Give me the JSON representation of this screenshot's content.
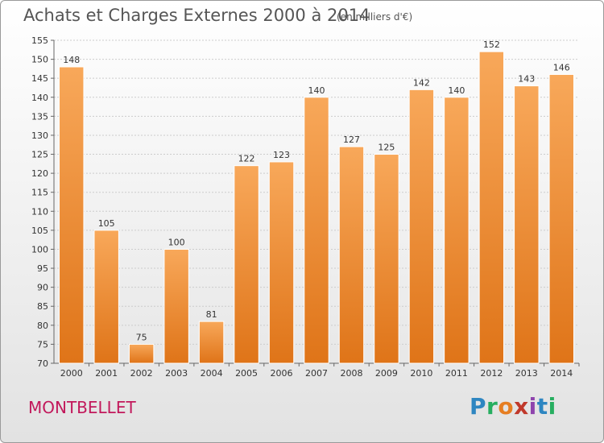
{
  "title": "Achats et Charges Externes 2000 à 2014",
  "subtitle": "(en milliers d'€)",
  "commune": "MONTBELLET",
  "logo": {
    "letters": [
      {
        "ch": "P",
        "color": "#2e86c1"
      },
      {
        "ch": "r",
        "color": "#27ae60"
      },
      {
        "ch": "o",
        "color": "#e67e22"
      },
      {
        "ch": "x",
        "color": "#c0392b"
      },
      {
        "ch": "i",
        "color": "#8e44ad"
      },
      {
        "ch": "t",
        "color": "#2e86c1"
      },
      {
        "ch": "i",
        "color": "#27ae60"
      }
    ]
  },
  "colors": {
    "bar_light": "#f8a85a",
    "bar_dark": "#df7418",
    "bar_edge": "#ffffff",
    "grid": "#cccccc"
  },
  "chart_data": {
    "type": "bar",
    "categories": [
      "2000",
      "2001",
      "2002",
      "2003",
      "2004",
      "2005",
      "2006",
      "2007",
      "2008",
      "2009",
      "2010",
      "2011",
      "2012",
      "2013",
      "2014"
    ],
    "values": [
      148,
      105,
      75,
      100,
      81,
      122,
      123,
      140,
      127,
      125,
      142,
      140,
      152,
      143,
      146
    ],
    "title": "Achats et Charges Externes 2000 à 2014",
    "subtitle": "(en milliers d'€)",
    "ylim": [
      70,
      155
    ],
    "yticks": [
      70,
      75,
      80,
      85,
      90,
      95,
      100,
      105,
      110,
      115,
      120,
      125,
      130,
      135,
      140,
      145,
      150,
      155
    ],
    "grid": true
  }
}
